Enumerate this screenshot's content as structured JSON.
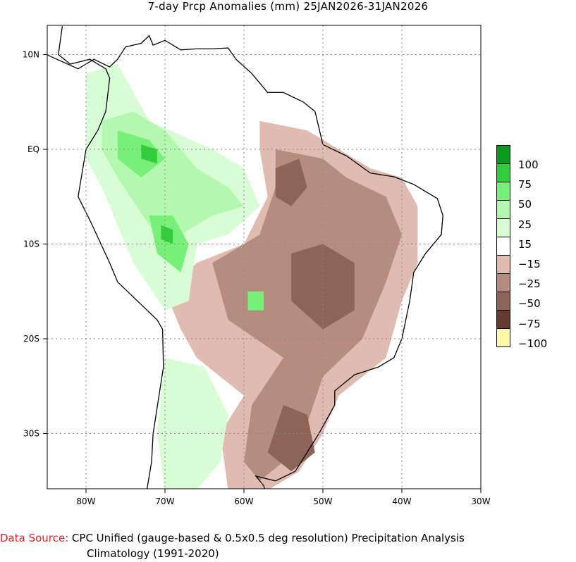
{
  "title": "7-day Prcp Anomalies (mm) 25JAN2026-31JAN2026",
  "axes": {
    "lon_ticks": [
      "80W",
      "70W",
      "60W",
      "50W",
      "40W",
      "30W"
    ],
    "lat_ticks": [
      "10N",
      "EQ",
      "10S",
      "20S",
      "30S"
    ]
  },
  "legend": {
    "colors": [
      "#0c9a1c",
      "#32cc3c",
      "#78f078",
      "#b4f8b0",
      "#d8fcd4",
      "#ffffff",
      "#e0bcb0",
      "#b48c80",
      "#8c6458",
      "#643c30",
      "#fff8a8"
    ],
    "labels": [
      "100",
      "75",
      "50",
      "25",
      "15",
      "−15",
      "−25",
      "−50",
      "−75",
      "−100"
    ]
  },
  "footer": {
    "source_label": "Data Source:",
    "source_text": " CPC Unified (gauge-based & 0.5x0.5 deg resolution) Precipitation Analysis",
    "climatology": "Climatology (1991-2020)"
  }
}
